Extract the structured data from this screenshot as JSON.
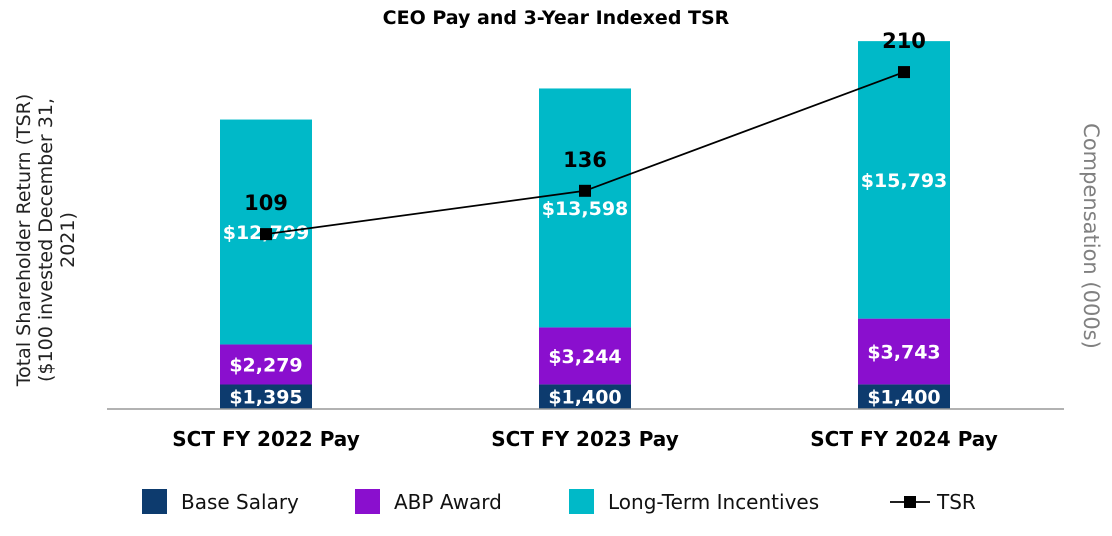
{
  "chart_data": {
    "type": "bar",
    "stacked": true,
    "title": "CEO Pay and 3-Year Indexed TSR",
    "ylabel": "Total Shareholder Return (TSR) ($100 invested December 31, 2021)",
    "ylabel_lines": [
      "Total Shareholder Return (TSR)",
      "($100 invested December 31,",
      "2021)"
    ],
    "y2label": "Compensation (000s)",
    "categories": [
      "SCT FY 2022 Pay",
      "SCT FY 2023 Pay",
      "SCT FY 2024 Pay"
    ],
    "series": [
      {
        "name": "Base Salary",
        "color": "#0d3b6e",
        "values": [
          1395,
          1400,
          1400
        ],
        "labels": [
          "$1,395",
          "$1,400",
          "$1,400"
        ]
      },
      {
        "name": "ABP Award",
        "color": "#8a0fce",
        "values": [
          2279,
          3244,
          3743
        ],
        "labels": [
          "$2,279",
          "$3,244",
          "$3,743"
        ]
      },
      {
        "name": "Long-Term Incentives",
        "color": "#00b9c8",
        "values": [
          12799,
          13598,
          15793
        ],
        "labels": [
          "$12,799",
          "$13,598",
          "$15,793"
        ]
      }
    ],
    "line_series": {
      "name": "TSR",
      "color": "#000000",
      "values": [
        109,
        136,
        210
      ],
      "labels": [
        "109",
        "136",
        "210"
      ]
    },
    "compensation_range": [
      0,
      21000
    ],
    "tsr_range": [
      0,
      230
    ],
    "grid": false,
    "legend_position": "bottom"
  }
}
